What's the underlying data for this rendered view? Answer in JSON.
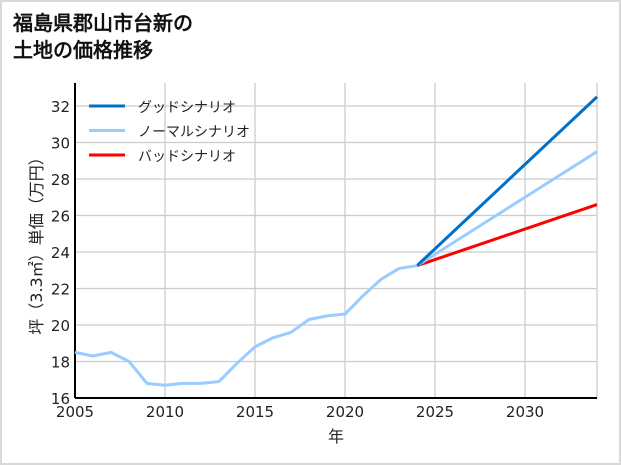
{
  "chart_data": {
    "type": "line",
    "title": "福島県郡山市台新の\n土地の価格推移",
    "xlabel": "年",
    "ylabel": "坪（3.3㎡）単価（万円）",
    "xlim": [
      2005,
      2034
    ],
    "ylim": [
      16,
      33
    ],
    "xticks": [
      2005,
      2010,
      2015,
      2020,
      2025,
      2030
    ],
    "yticks": [
      16,
      18,
      20,
      22,
      24,
      26,
      28,
      30,
      32
    ],
    "grid": true,
    "legend_position": "top-left",
    "historical": {
      "name": "ノーマルシナリオ",
      "x": [
        2005,
        2006,
        2007,
        2008,
        2009,
        2010,
        2011,
        2012,
        2013,
        2014,
        2015,
        2016,
        2017,
        2018,
        2019,
        2020,
        2021,
        2022,
        2023,
        2024
      ],
      "y": [
        18.5,
        18.3,
        18.5,
        18.0,
        16.8,
        16.7,
        16.8,
        16.8,
        16.9,
        17.9,
        18.8,
        19.3,
        19.6,
        20.3,
        20.5,
        20.6,
        21.6,
        22.5,
        23.1,
        23.25
      ]
    },
    "series": [
      {
        "name": "グッドシナリオ",
        "color": "#0070c8",
        "x": [
          2024,
          2034
        ],
        "y": [
          23.25,
          32.5
        ]
      },
      {
        "name": "ノーマルシナリオ",
        "color": "#99ccff",
        "x": [
          2024,
          2034
        ],
        "y": [
          23.25,
          29.5
        ]
      },
      {
        "name": "バッドシナリオ",
        "color": "#ff0000",
        "x": [
          2024,
          2034
        ],
        "y": [
          23.25,
          26.6
        ]
      }
    ]
  }
}
